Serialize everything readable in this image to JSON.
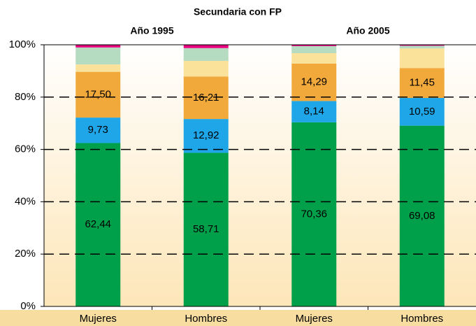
{
  "chart_data": {
    "type": "stacked_bar",
    "title": "Secundaria con FP",
    "groups": [
      "Año 1995",
      "Año 2005"
    ],
    "categories": [
      "Mujeres",
      "Hombres",
      "Mujeres",
      "Hombres"
    ],
    "series": [
      {
        "color": "#00a04a",
        "values": [
          62.44,
          58.71,
          70.36,
          69.08
        ],
        "value_labels": [
          "62,44",
          "58,71",
          "70,36",
          "69,08"
        ]
      },
      {
        "color": "#1ea6e8",
        "values": [
          9.73,
          12.92,
          8.14,
          10.59
        ],
        "value_labels": [
          "9,73",
          "12,92",
          "8,14",
          "10,59"
        ]
      },
      {
        "color": "#f2a93b",
        "values": [
          17.5,
          16.21,
          14.29,
          11.45
        ],
        "value_labels": [
          "17,50",
          "16,21",
          "14,29",
          "11,45"
        ]
      },
      {
        "color": "#fbe29a",
        "values": [
          2.8,
          6.0,
          4.0,
          7.5
        ]
      },
      {
        "color": "#b5dcc0",
        "values": [
          6.5,
          4.9,
          2.7,
          1.0
        ]
      },
      {
        "color": "#e6007e",
        "values": [
          1.0,
          1.2,
          0.5,
          0.4
        ]
      }
    ],
    "ylim": [
      0,
      100
    ],
    "yticks": [
      {
        "value": 0,
        "label": "0%"
      },
      {
        "value": 20,
        "label": "20%"
      },
      {
        "value": 40,
        "label": "40%"
      },
      {
        "value": 60,
        "label": "60%"
      },
      {
        "value": 80,
        "label": "80%"
      },
      {
        "value": 100,
        "label": "100%"
      }
    ],
    "grid": true
  }
}
